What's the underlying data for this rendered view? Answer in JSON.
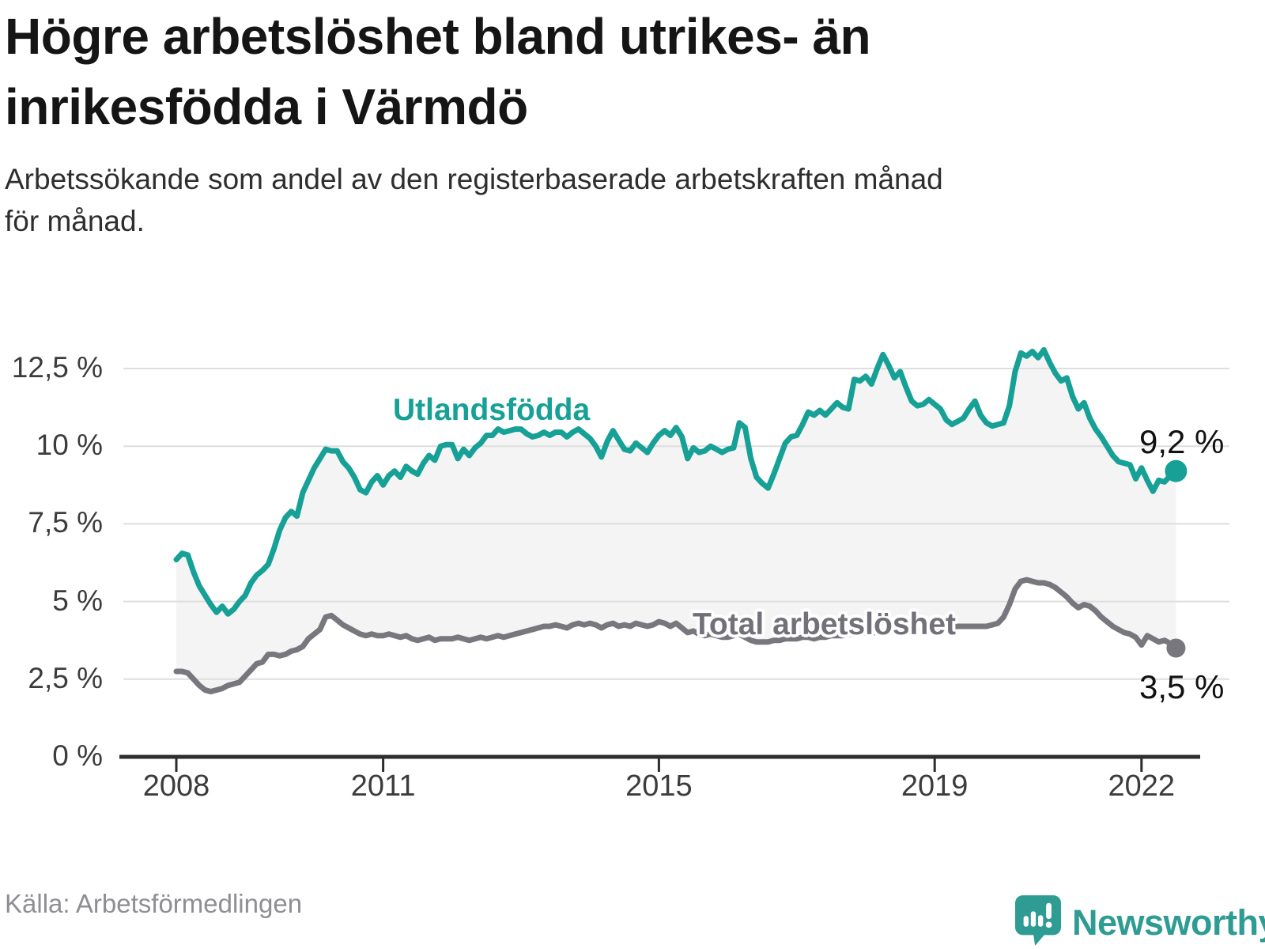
{
  "header": {
    "title": "Högre arbetslöshet bland utrikes- än\ninrikesfödda i Värmdö",
    "subtitle": "Arbetssökande som andel av den registerbaserade arbetskraften månad\nför månad."
  },
  "footer": {
    "source": "Källa: Arbetsförmedlingen",
    "brand": "Newsworthy"
  },
  "colors": {
    "accent_teal": "#16A096",
    "line_gray": "#77777d",
    "label_gray": "#71717a",
    "fill_between": "#f4f4f4",
    "gridline": "#dedede",
    "axis": "#2d2d2d",
    "text_dark": "#151515",
    "tick_text": "#3c3c3c",
    "source_text": "#8e8e93",
    "logo_teal": "#2f9c93"
  },
  "chart_data": {
    "type": "line",
    "title": "Högre arbetslöshet bland utrikes- än inrikesfödda i Värmdö",
    "subtitle": "Arbetssökande som andel av den registerbaserade arbetskraften månad för månad.",
    "xlabel": "",
    "ylabel": "",
    "ylim": [
      0,
      12.5
    ],
    "x_start_year": 2008,
    "points_per_year": 12,
    "grid": true,
    "legend_position": "inline-labels",
    "y_ticks": [
      {
        "value": 0,
        "label": "0 %"
      },
      {
        "value": 2.5,
        "label": "2,5 %"
      },
      {
        "value": 5,
        "label": "5 %"
      },
      {
        "value": 7.5,
        "label": "7,5 %"
      },
      {
        "value": 10,
        "label": "10 %"
      },
      {
        "value": 12.5,
        "label": "12,5 %"
      }
    ],
    "x_ticks": [
      {
        "year": 2008,
        "label": "2008"
      },
      {
        "year": 2011,
        "label": "2011"
      },
      {
        "year": 2015,
        "label": "2015"
      },
      {
        "year": 2019,
        "label": "2019"
      },
      {
        "year": 2022,
        "label": "2022"
      }
    ],
    "series": [
      {
        "name": "Utlandsfödda",
        "color": "#16A096",
        "end_label": "9,2 %",
        "end_value": 9.2,
        "values": [
          6.35,
          6.55,
          6.5,
          5.95,
          5.5,
          5.2,
          4.9,
          4.65,
          4.85,
          4.6,
          4.75,
          5.0,
          5.2,
          5.6,
          5.85,
          6.0,
          6.2,
          6.7,
          7.3,
          7.7,
          7.9,
          7.75,
          8.5,
          8.9,
          9.3,
          9.6,
          9.9,
          9.85,
          9.85,
          9.5,
          9.3,
          9.0,
          8.6,
          8.5,
          8.85,
          9.05,
          8.75,
          9.05,
          9.2,
          9.0,
          9.35,
          9.2,
          9.1,
          9.45,
          9.7,
          9.55,
          10.0,
          10.05,
          10.05,
          9.6,
          9.9,
          9.7,
          9.95,
          10.1,
          10.35,
          10.35,
          10.55,
          10.45,
          10.5,
          10.55,
          10.55,
          10.4,
          10.3,
          10.35,
          10.45,
          10.35,
          10.45,
          10.45,
          10.3,
          10.45,
          10.55,
          10.4,
          10.25,
          10.0,
          9.65,
          10.15,
          10.5,
          10.2,
          9.9,
          9.85,
          10.1,
          9.95,
          9.8,
          10.1,
          10.35,
          10.5,
          10.35,
          10.6,
          10.3,
          9.6,
          9.95,
          9.8,
          9.85,
          10.0,
          9.9,
          9.8,
          9.9,
          9.95,
          10.75,
          10.6,
          9.6,
          9.0,
          8.8,
          8.65,
          9.1,
          9.6,
          10.1,
          10.3,
          10.35,
          10.7,
          11.1,
          11.0,
          11.15,
          11.0,
          11.2,
          11.4,
          11.25,
          11.2,
          12.15,
          12.1,
          12.25,
          12.0,
          12.5,
          12.95,
          12.6,
          12.2,
          12.4,
          11.9,
          11.45,
          11.3,
          11.35,
          11.5,
          11.35,
          11.2,
          10.85,
          10.7,
          10.8,
          10.9,
          11.2,
          11.45,
          11.0,
          10.75,
          10.65,
          10.7,
          10.75,
          11.3,
          12.4,
          13.0,
          12.9,
          13.05,
          12.85,
          13.1,
          12.7,
          12.35,
          12.1,
          12.2,
          11.6,
          11.2,
          11.4,
          10.9,
          10.55,
          10.3,
          10.0,
          9.7,
          9.5,
          9.45,
          9.4,
          8.95,
          9.3,
          8.9,
          8.55,
          8.9,
          8.85,
          9.05,
          9.2
        ]
      },
      {
        "name": "Total arbetslöshet",
        "color": "#77777d",
        "end_label": "3,5 %",
        "end_value": 3.5,
        "values": [
          2.75,
          2.75,
          2.7,
          2.5,
          2.3,
          2.15,
          2.1,
          2.15,
          2.2,
          2.3,
          2.35,
          2.4,
          2.6,
          2.8,
          3.0,
          3.05,
          3.3,
          3.3,
          3.25,
          3.3,
          3.4,
          3.45,
          3.55,
          3.8,
          3.95,
          4.1,
          4.5,
          4.55,
          4.4,
          4.25,
          4.15,
          4.05,
          3.95,
          3.9,
          3.95,
          3.9,
          3.9,
          3.95,
          3.9,
          3.85,
          3.9,
          3.8,
          3.75,
          3.8,
          3.85,
          3.75,
          3.8,
          3.8,
          3.8,
          3.85,
          3.8,
          3.75,
          3.8,
          3.85,
          3.8,
          3.85,
          3.9,
          3.85,
          3.9,
          3.95,
          4.0,
          4.05,
          4.1,
          4.15,
          4.2,
          4.2,
          4.25,
          4.2,
          4.15,
          4.25,
          4.3,
          4.25,
          4.3,
          4.25,
          4.15,
          4.25,
          4.3,
          4.2,
          4.25,
          4.2,
          4.3,
          4.25,
          4.2,
          4.25,
          4.35,
          4.3,
          4.2,
          4.3,
          4.15,
          4.0,
          4.05,
          3.95,
          3.9,
          3.95,
          3.9,
          3.85,
          3.85,
          3.9,
          3.95,
          3.85,
          3.75,
          3.7,
          3.7,
          3.7,
          3.75,
          3.75,
          3.8,
          3.8,
          3.8,
          3.85,
          3.85,
          3.8,
          3.85,
          3.85,
          3.9,
          3.9,
          3.9,
          3.95,
          3.95,
          3.95,
          4.0,
          4.0,
          4.0,
          4.05,
          4.05,
          4.05,
          4.1,
          4.1,
          4.1,
          4.1,
          4.1,
          4.1,
          4.1,
          4.15,
          4.15,
          4.15,
          4.2,
          4.2,
          4.2,
          4.2,
          4.2,
          4.2,
          4.25,
          4.3,
          4.5,
          4.9,
          5.4,
          5.65,
          5.7,
          5.65,
          5.6,
          5.6,
          5.55,
          5.45,
          5.3,
          5.15,
          4.95,
          4.8,
          4.9,
          4.85,
          4.7,
          4.5,
          4.35,
          4.2,
          4.1,
          4.0,
          3.95,
          3.85,
          3.6,
          3.9,
          3.8,
          3.7,
          3.75,
          3.65,
          3.5
        ]
      }
    ]
  }
}
